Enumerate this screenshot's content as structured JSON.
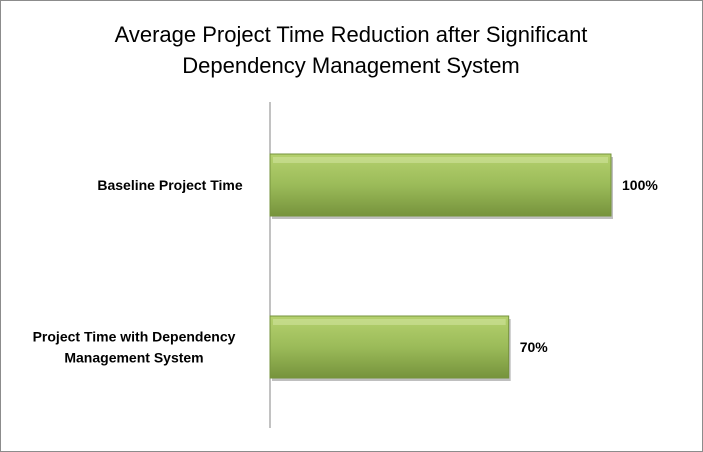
{
  "chart_data": {
    "type": "bar",
    "orientation": "horizontal",
    "title_lines": [
      "Average Project Time Reduction after Significant",
      "Dependency Management System"
    ],
    "categories": [
      [
        "Baseline Project Time"
      ],
      [
        "Project Time with Dependency",
        "Management System"
      ]
    ],
    "values": [
      100,
      70
    ],
    "value_labels": [
      "100%",
      "70%"
    ],
    "xlim": [
      0,
      100
    ],
    "grid": false,
    "legend": "none",
    "bar_color": "#9bbb59",
    "bar_color_light": "#b5d16e",
    "bar_color_dark": "#76933c"
  }
}
